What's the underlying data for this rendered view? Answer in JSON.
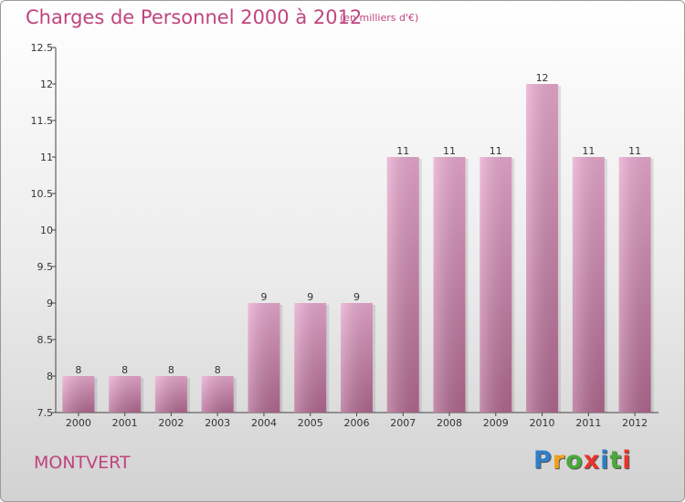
{
  "header": {
    "title": "Charges de Personnel 2000 à 2012",
    "unit": "(en milliers d'€)"
  },
  "footer": {
    "commune": "MONTVERT",
    "logo": [
      "P",
      "r",
      "o",
      "x",
      "i",
      "t",
      "i"
    ],
    "logo_colors": [
      "#2e7fc8",
      "#f0a020",
      "#4aa83c",
      "#e8342a",
      "#2e7fc8",
      "#4aa83c",
      "#e8342a"
    ]
  },
  "chart_data": {
    "type": "bar",
    "title": "Charges de Personnel 2000 à 2012",
    "subtitle": "(en milliers d'€)",
    "categories": [
      "2000",
      "2001",
      "2002",
      "2003",
      "2004",
      "2005",
      "2006",
      "2007",
      "2008",
      "2009",
      "2010",
      "2011",
      "2012"
    ],
    "values": [
      8,
      8,
      8,
      8,
      9,
      9,
      9,
      11,
      11,
      11,
      12,
      11,
      11
    ],
    "value_labels": [
      "8",
      "8",
      "8",
      "8",
      "9",
      "9",
      "9",
      "11",
      "11",
      "11",
      "12",
      "11",
      "11"
    ],
    "ylim": [
      7.5,
      12.5
    ],
    "yticks": [
      7.5,
      8,
      8.5,
      9,
      9.5,
      10,
      10.5,
      11,
      11.5,
      12,
      12.5
    ],
    "ytick_labels": [
      "7.5",
      "8",
      "8.5",
      "9",
      "9.5",
      "10",
      "10.5",
      "11",
      "11.5",
      "12",
      "12.5"
    ],
    "grid": false,
    "bar_color": "#d98ab6"
  }
}
